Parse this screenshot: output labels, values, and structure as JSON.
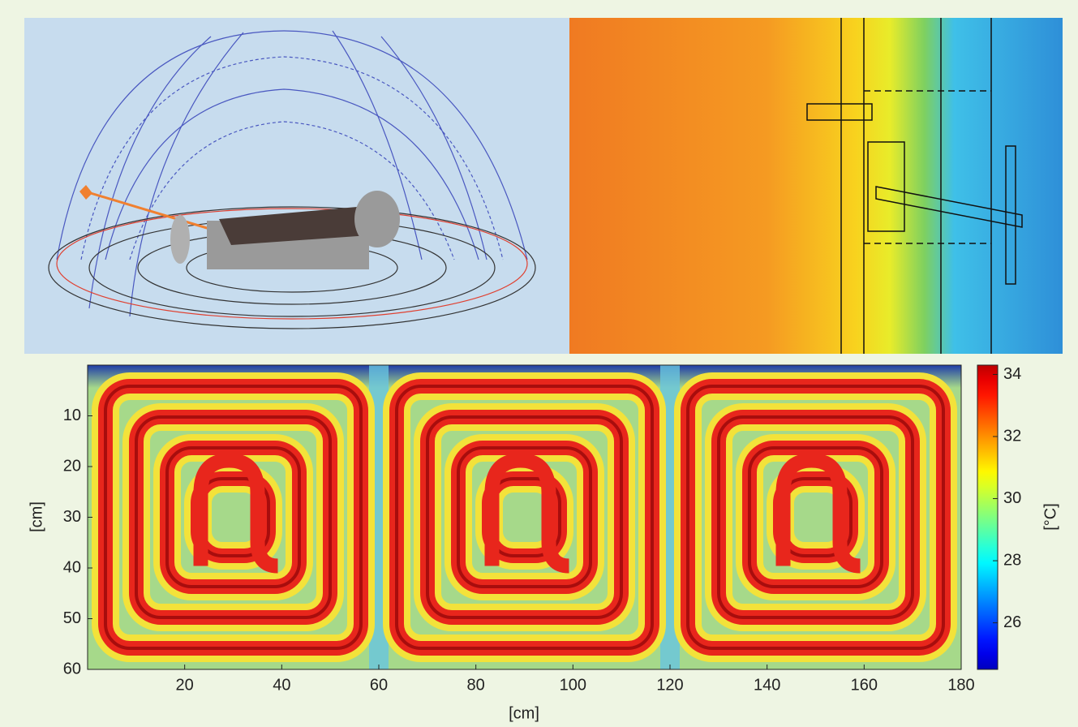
{
  "chart_data": {
    "type": "heatmap",
    "xlabel": "[cm]",
    "ylabel": "[cm]",
    "xlim": [
      0,
      180
    ],
    "ylim": [
      0,
      60
    ],
    "y_inverted": true,
    "xticks": [
      20,
      40,
      60,
      80,
      100,
      120,
      140,
      160,
      180
    ],
    "yticks": [
      10,
      20,
      30,
      40,
      50,
      60
    ],
    "colormap": "jet",
    "colorbar": {
      "label": "[°C]",
      "lim": [
        24.5,
        34.3
      ],
      "ticks": [
        26,
        28,
        30,
        32,
        34
      ]
    }
  }
}
